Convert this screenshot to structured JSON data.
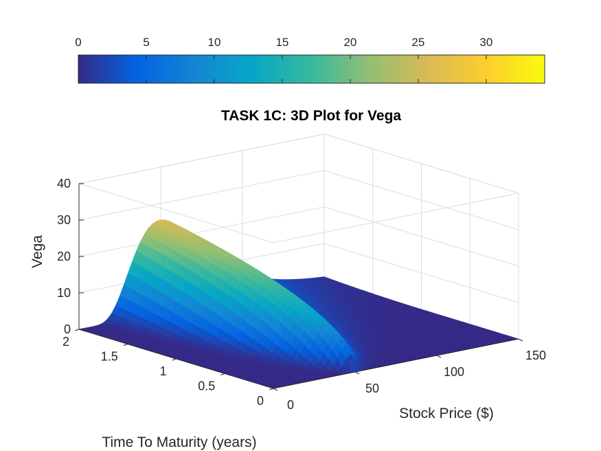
{
  "chart_data": {
    "type": "surface",
    "title": "TASK 1C: 3D Plot for Vega",
    "xlabel": "Stock Price ($)",
    "ylabel": "Time To Maturity (years)",
    "zlabel": "Vega",
    "xlim": [
      0,
      150
    ],
    "ylim": [
      0,
      2
    ],
    "zlim": [
      0,
      40
    ],
    "x_ticks": [
      "0",
      "50",
      "100",
      "150"
    ],
    "y_ticks": [
      "0",
      "0.5",
      "1",
      "1.5",
      "2"
    ],
    "z_ticks": [
      "0",
      "10",
      "20",
      "30",
      "40"
    ],
    "colorbar": {
      "location": "top",
      "range": [
        0,
        34.3
      ],
      "ticks": [
        "0",
        "5",
        "10",
        "15",
        "20",
        "25",
        "30"
      ]
    },
    "colormap": "parula",
    "grid": true,
    "surface": {
      "peak_vega": 34.3,
      "peak_at_stock_price": 48,
      "peak_at_time_to_maturity": 1.75,
      "sample_profiles": [
        {
          "time_to_maturity": 2.0,
          "stock_price": [
            0,
            20,
            40,
            50,
            60,
            80,
            100,
            120,
            150
          ],
          "vega": [
            0,
            2,
            22,
            33,
            32,
            24,
            14,
            8,
            2
          ]
        },
        {
          "time_to_maturity": 1.0,
          "stock_price": [
            0,
            20,
            40,
            50,
            60,
            80,
            100,
            120,
            150
          ],
          "vega": [
            0,
            1,
            14,
            22,
            24,
            18,
            10,
            5,
            1
          ]
        },
        {
          "time_to_maturity": 0.2,
          "stock_price": [
            0,
            20,
            40,
            50,
            60,
            80,
            100,
            120,
            150
          ],
          "vega": [
            0,
            0,
            3,
            10,
            9,
            3,
            0.5,
            0,
            0
          ]
        }
      ]
    }
  },
  "palette": [
    "#352a87",
    "#0363e1",
    "#1485d4",
    "#06a7c6",
    "#38b99e",
    "#92bf73",
    "#d9ba56",
    "#fcce2e",
    "#f9fb0e"
  ]
}
